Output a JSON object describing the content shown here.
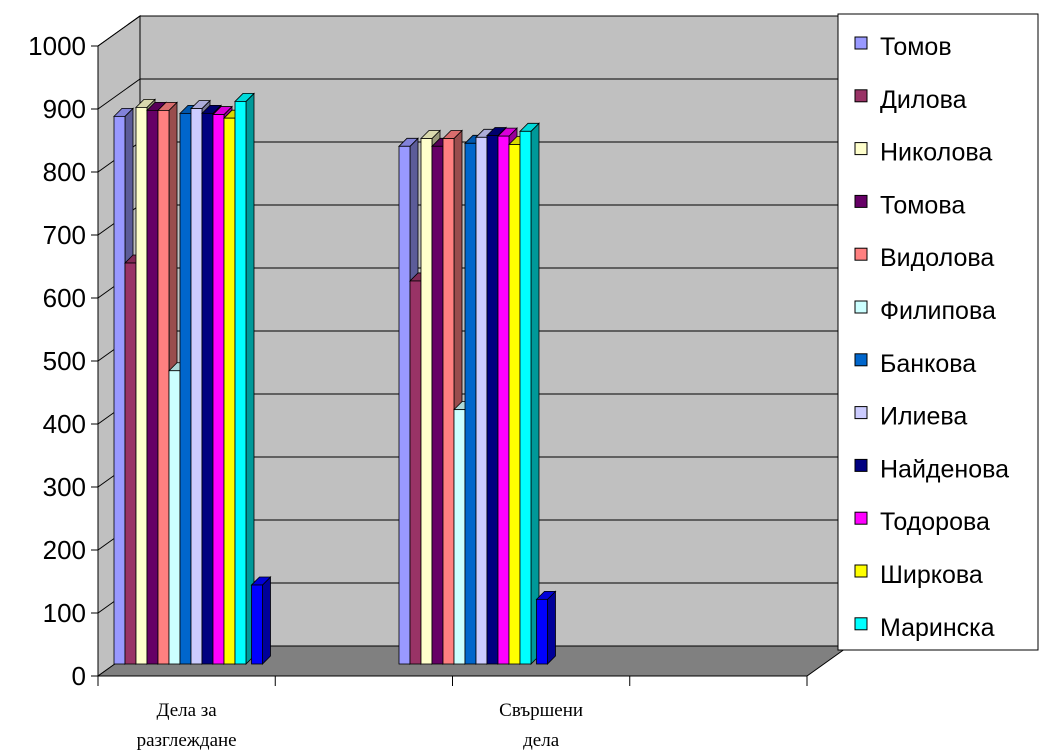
{
  "chart_data": {
    "type": "bar",
    "title": "",
    "xlabel": "",
    "ylabel": "",
    "ylim": [
      0,
      1000
    ],
    "yticks": [
      0,
      100,
      200,
      300,
      400,
      500,
      600,
      700,
      800,
      900,
      1000
    ],
    "grid": "horizontal",
    "legend_position": "right",
    "style": "3d-clustered-column",
    "categories": [
      {
        "lines": [
          "Дела за",
          "разглеждане"
        ]
      },
      {
        "lines": [
          "Свършени",
          "дела"
        ]
      }
    ],
    "category_slots": 4,
    "series": [
      {
        "name": "Томов",
        "color": "#9999FF",
        "values": [
          915,
          865
        ]
      },
      {
        "name": "Дилова",
        "color": "#993366",
        "values": [
          670,
          640
        ]
      },
      {
        "name": "Николова",
        "color": "#FFFFCC",
        "values": [
          930,
          878
        ]
      },
      {
        "name": "Томова",
        "color": "#660066",
        "values": [
          925,
          865
        ]
      },
      {
        "name": "Видолова",
        "color": "#FF8080",
        "values": [
          925,
          878
        ]
      },
      {
        "name": "Филипова",
        "color": "#CCFFFF",
        "values": [
          490,
          425
        ]
      },
      {
        "name": "Банкова",
        "color": "#0066CC",
        "values": [
          920,
          870
        ]
      },
      {
        "name": "Илиева",
        "color": "#CCCCFF",
        "values": [
          928,
          880
        ]
      },
      {
        "name": "Найденова",
        "color": "#000080",
        "values": [
          920,
          883
        ]
      },
      {
        "name": "Тодорова",
        "color": "#FF00FF",
        "values": [
          918,
          882
        ]
      },
      {
        "name": "Ширкова",
        "color": "#FFFF00",
        "values": [
          912,
          868
        ]
      },
      {
        "name": "Маринска",
        "color": "#00FFFF",
        "values": [
          940,
          890
        ]
      },
      {
        "name": "",
        "color": "#0000FF",
        "values": [
          132,
          108
        ]
      }
    ]
  }
}
